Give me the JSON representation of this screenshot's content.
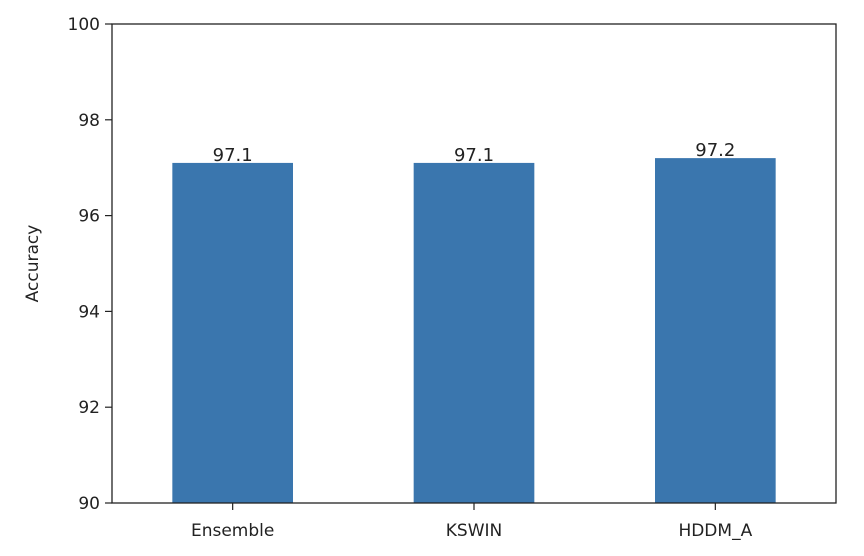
{
  "chart_data": {
    "type": "bar",
    "categories": [
      "Ensemble",
      "KSWIN",
      "HDDM_A"
    ],
    "values": [
      97.1,
      97.1,
      97.2
    ],
    "value_labels": [
      "97.1",
      "97.1",
      "97.2"
    ],
    "ylabel": "Accuracy",
    "xlabel": "",
    "ylim": [
      90,
      100
    ],
    "yticks": [
      90,
      92,
      94,
      96,
      98,
      100
    ],
    "ytick_labels": [
      "90",
      "92",
      "94",
      "96",
      "98",
      "100"
    ],
    "grid": false,
    "legend": "none",
    "bar_color": "#3a76ae"
  }
}
